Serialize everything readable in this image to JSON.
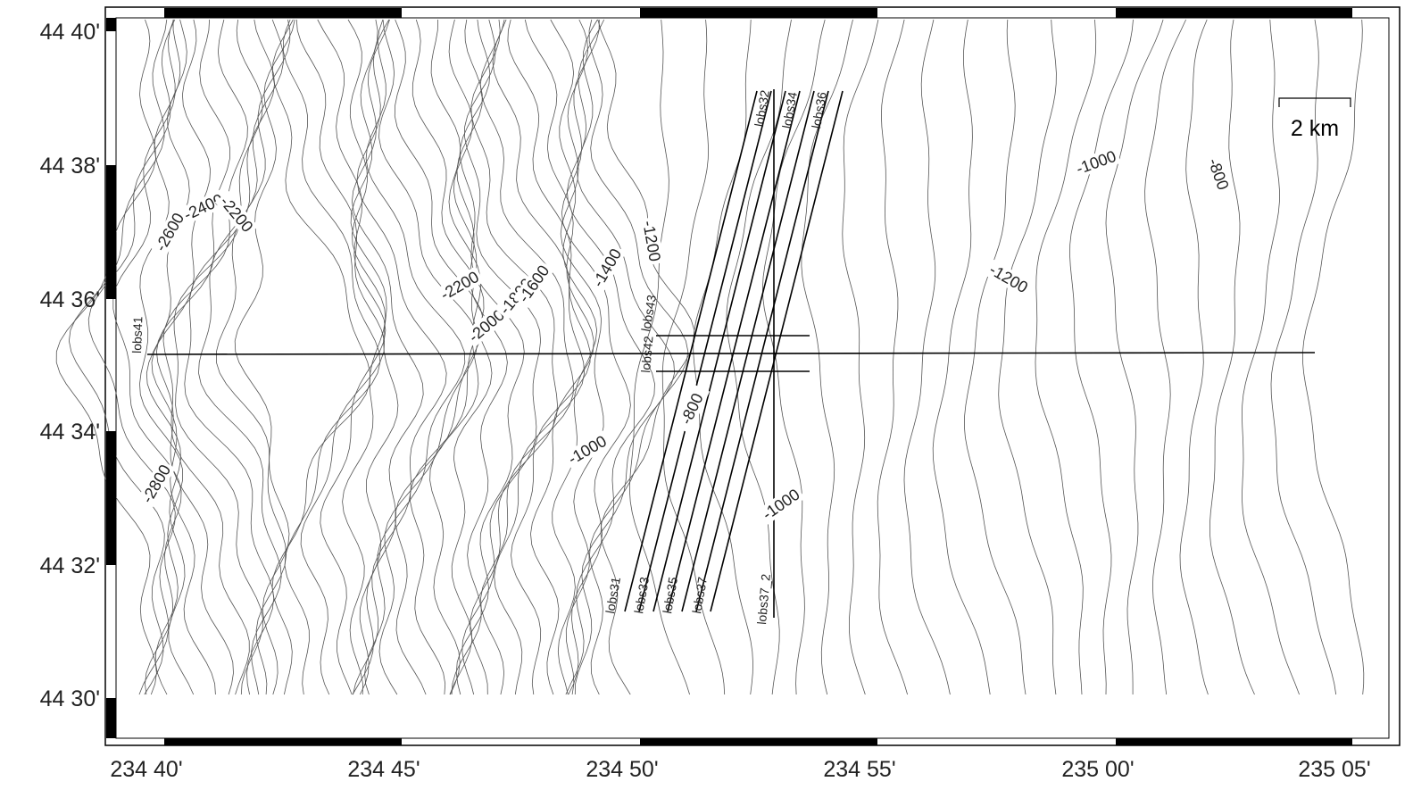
{
  "map": {
    "lat_ticks": [
      "44 40'",
      "44 38'",
      "44 36'",
      "44 34'",
      "44 32'",
      "44 30'"
    ],
    "lon_ticks": [
      "234 40'",
      "234 45'",
      "234 50'",
      "234 55'",
      "235 00'",
      "235 05'"
    ],
    "scale_label": "2 km",
    "contour_labels": [
      "-2600",
      "-2400",
      "-2200",
      "-2200",
      "-2000",
      "-1800",
      "-1600",
      "-1400",
      "-1200",
      "-1000",
      "-800",
      "-1200",
      "-800",
      "-1000",
      "-1000",
      "-2800"
    ],
    "line_labels": [
      "lobs32",
      "lobs34",
      "lobs36",
      "lobs31",
      "lobs33",
      "lobs35",
      "lobs37",
      "lobs37_2",
      "lobs41",
      "lobs42",
      "lobs43"
    ]
  }
}
